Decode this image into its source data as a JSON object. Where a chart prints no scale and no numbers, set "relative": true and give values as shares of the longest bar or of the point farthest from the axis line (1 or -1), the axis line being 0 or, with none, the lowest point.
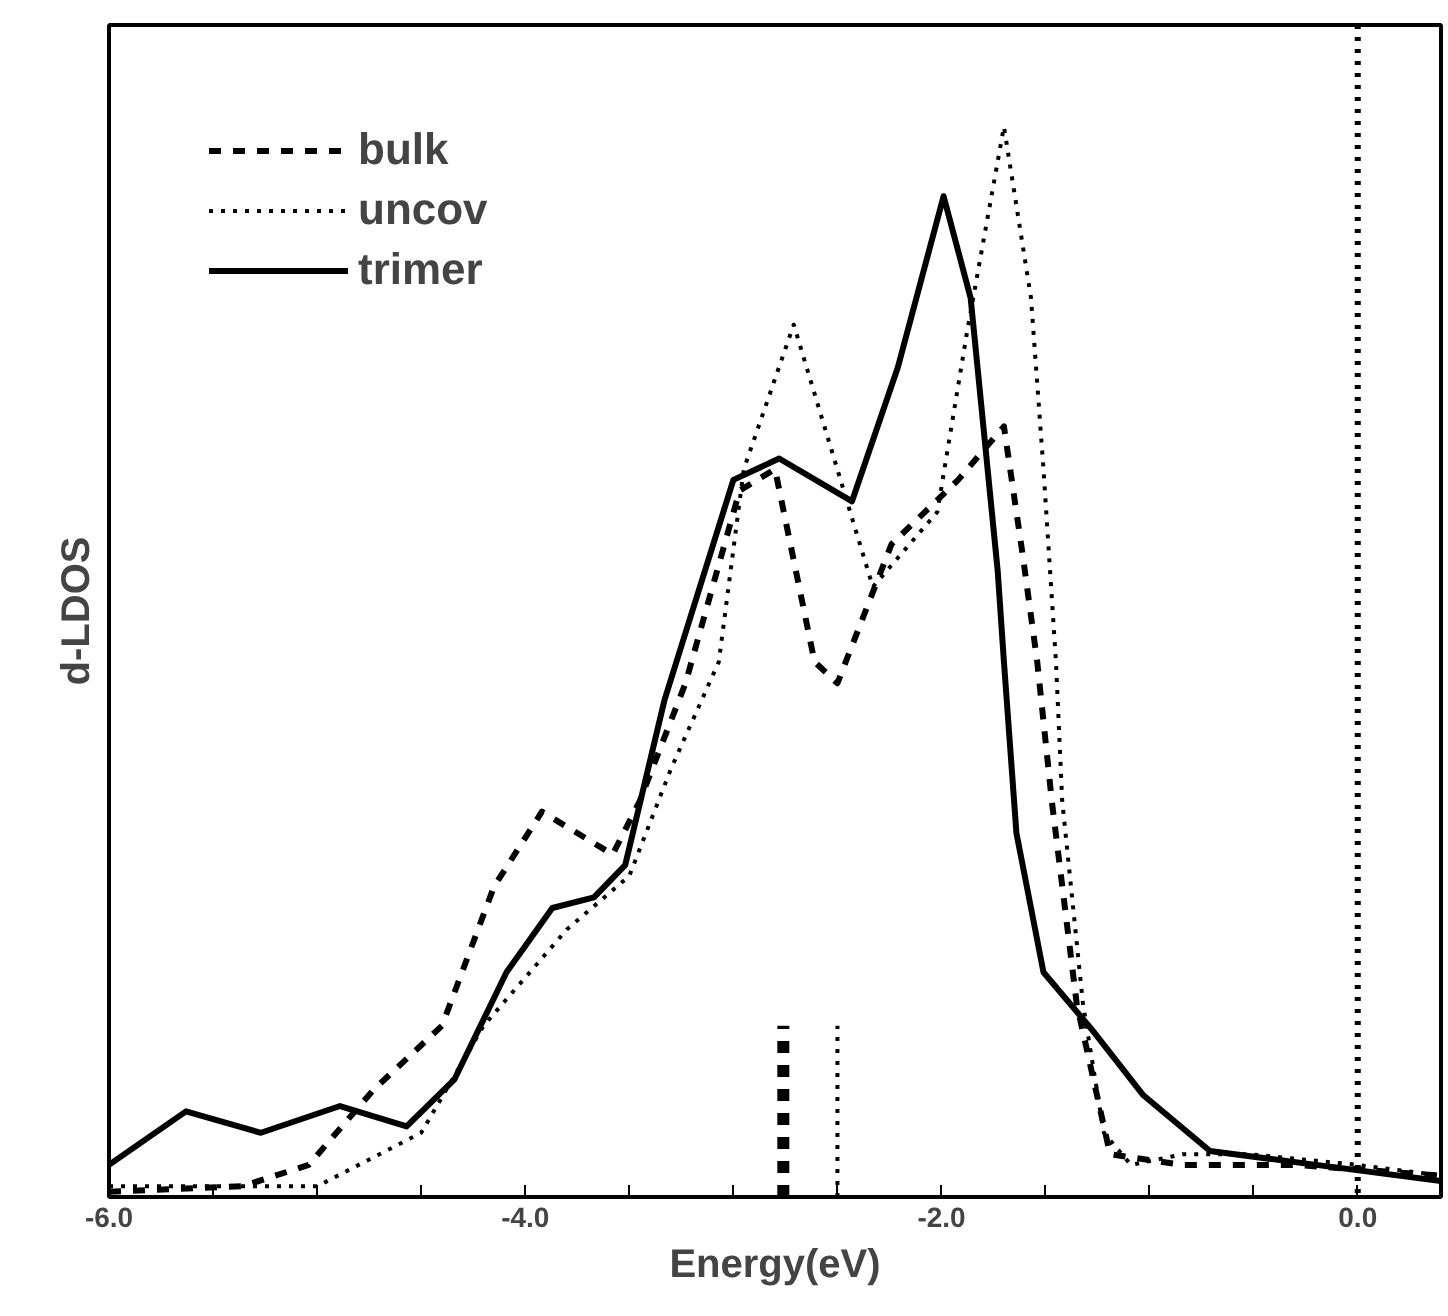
{
  "chart_data": {
    "type": "line",
    "xlabel": "Energy(eV)",
    "ylabel": "d-LDOS",
    "relative": true,
    "legend": "top left",
    "grid": false,
    "xlim": [
      -6.0,
      0.4
    ],
    "xticks": [
      {
        "value": -6,
        "label": "-6.0"
      },
      {
        "value": -5.5,
        "label": null
      },
      {
        "value": -5,
        "label": null
      },
      {
        "value": -4.5,
        "label": null
      },
      {
        "value": -4,
        "label": "-4.0"
      },
      {
        "value": -3.5,
        "label": null
      },
      {
        "value": -3,
        "label": null
      },
      {
        "value": -2.5,
        "label": null
      },
      {
        "value": -2,
        "label": "-2.0"
      },
      {
        "value": -1.5,
        "label": null
      },
      {
        "value": -1,
        "label": null
      },
      {
        "value": -0.5,
        "label": null
      },
      {
        "value": 0,
        "label": "0.0"
      }
    ],
    "ref_lines": [
      {
        "axis": "x",
        "value": 0,
        "line_style": "dotted",
        "color": "#000000"
      }
    ],
    "series": [
      {
        "name": "bulk",
        "color": "#000000",
        "line_style": "dashed",
        "x": [
          -6.0,
          -5.36,
          -5.04,
          -4.73,
          -4.4,
          -4.15,
          -3.92,
          -3.58,
          -3.45,
          -3.23,
          -2.97,
          -2.8,
          -2.61,
          -2.5,
          -2.24,
          -1.92,
          -1.7,
          -1.61,
          -1.54,
          -1.47,
          -1.35,
          -1.19,
          -0.84,
          -0.3,
          0.4
        ],
        "values": [
          0.005,
          0.01,
          0.03,
          0.1,
          0.16,
          0.29,
          0.36,
          0.32,
          0.37,
          0.48,
          0.66,
          0.68,
          0.5,
          0.48,
          0.61,
          0.67,
          0.72,
          0.6,
          0.5,
          0.37,
          0.18,
          0.04,
          0.03,
          0.03,
          0.02
        ]
      },
      {
        "name": "uncov",
        "color": "#000000",
        "line_style": "dotted",
        "x": [
          -6.0,
          -5.0,
          -4.5,
          -4.2,
          -3.8,
          -3.5,
          -3.3,
          -3.07,
          -2.95,
          -2.71,
          -2.33,
          -2.02,
          -1.88,
          -1.7,
          -1.57,
          -1.51,
          -1.45,
          -1.42,
          -1.32,
          -1.22,
          -1.09,
          -0.84,
          -0.52,
          0.0,
          0.4
        ],
        "values": [
          0.01,
          0.01,
          0.06,
          0.16,
          0.25,
          0.3,
          0.4,
          0.5,
          0.68,
          0.815,
          0.57,
          0.64,
          0.805,
          1.0,
          0.84,
          0.68,
          0.5,
          0.37,
          0.18,
          0.06,
          0.03,
          0.04,
          0.04,
          0.03,
          0.02
        ]
      },
      {
        "name": "trimer",
        "color": "#000000",
        "line_style": "solid",
        "x": [
          -6.0,
          -5.63,
          -5.27,
          -4.89,
          -4.57,
          -4.34,
          -4.09,
          -3.87,
          -3.67,
          -3.52,
          -3.33,
          -3.0,
          -2.78,
          -2.43,
          -2.21,
          -1.99,
          -1.86,
          -1.73,
          -1.7,
          -1.64,
          -1.51,
          -1.28,
          -1.03,
          -0.71,
          -0.2,
          0.4
        ],
        "values": [
          0.03,
          0.08,
          0.06,
          0.085,
          0.066,
          0.11,
          0.21,
          0.27,
          0.28,
          0.31,
          0.465,
          0.67,
          0.69,
          0.65,
          0.775,
          0.935,
          0.84,
          0.585,
          0.5,
          0.34,
          0.21,
          0.157,
          0.095,
          0.043,
          0.03,
          0.015
        ]
      },
      {
        "color": "#000000",
        "line_style": "dashed",
        "x": [
          -2.76,
          -2.76
        ],
        "values": [
          0,
          0.16
        ]
      },
      {
        "color": "#000000",
        "line_style": "dotted",
        "x": [
          -2.5,
          -2.5
        ],
        "values": [
          0,
          0.16
        ]
      }
    ]
  }
}
